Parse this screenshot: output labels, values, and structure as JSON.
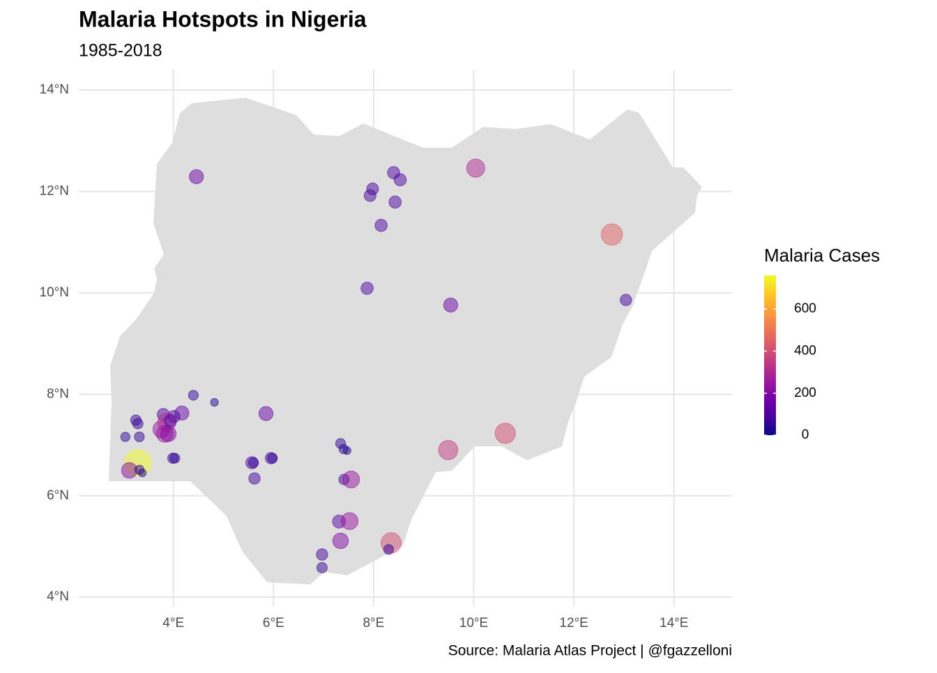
{
  "chart_data": {
    "type": "scatter",
    "title": "Malaria Hotspots in Nigeria",
    "subtitle": "1985-2018",
    "caption": "Source: Malaria Atlas Project | @fgazzelloni",
    "legend_title": "Malaria Cases",
    "x": [
      4.46,
      8.4,
      8.53,
      7.98,
      7.93,
      8.43,
      8.15,
      10.04,
      12.76,
      7.87,
      9.54,
      13.04,
      4.4,
      4.82,
      5.85,
      4.17,
      3.25,
      3.29,
      3.04,
      3.32,
      3.8,
      4.01,
      3.76,
      3.87,
      3.83,
      3.9,
      3.94,
      3.99,
      4.03,
      3.29,
      3.12,
      3.32,
      3.38,
      5.57,
      5.6,
      5.95,
      5.98,
      5.62,
      7.34,
      7.4,
      7.47,
      7.41,
      7.55,
      9.49,
      10.63,
      7.31,
      7.52,
      7.34,
      8.35,
      8.3,
      6.97,
      6.97
    ],
    "y": [
      12.29,
      12.37,
      12.23,
      12.05,
      11.92,
      11.79,
      11.33,
      12.46,
      11.15,
      10.09,
      9.76,
      9.86,
      7.98,
      7.84,
      7.62,
      7.63,
      7.49,
      7.42,
      7.16,
      7.16,
      7.6,
      7.56,
      7.31,
      7.45,
      7.22,
      7.22,
      7.48,
      6.74,
      6.74,
      6.65,
      6.5,
      6.51,
      6.45,
      6.65,
      6.65,
      6.74,
      6.74,
      6.34,
      7.03,
      6.92,
      6.89,
      6.32,
      6.32,
      6.9,
      7.23,
      5.49,
      5.5,
      5.11,
      5.07,
      4.94,
      4.84,
      4.58
    ],
    "values": [
      150,
      100,
      100,
      90,
      90,
      100,
      100,
      300,
      450,
      100,
      150,
      80,
      50,
      20,
      150,
      150,
      60,
      60,
      40,
      50,
      100,
      100,
      250,
      300,
      250,
      200,
      100,
      60,
      50,
      760,
      200,
      40,
      20,
      100,
      50,
      80,
      50,
      80,
      50,
      40,
      20,
      60,
      250,
      350,
      400,
      120,
      250,
      200,
      400,
      50,
      80,
      60
    ],
    "xlim": [
      2.11,
      15.16
    ],
    "ylim": [
      3.81,
      14.4
    ],
    "xticks": [
      {
        "value": 4,
        "label": "4°E"
      },
      {
        "value": 6,
        "label": "6°E"
      },
      {
        "value": 8,
        "label": "8°E"
      },
      {
        "value": 10,
        "label": "10°E"
      },
      {
        "value": 12,
        "label": "12°E"
      },
      {
        "value": 14,
        "label": "14°E"
      }
    ],
    "yticks": [
      {
        "value": 4,
        "label": "4°N"
      },
      {
        "value": 6,
        "label": "6°N"
      },
      {
        "value": 8,
        "label": "8°N"
      },
      {
        "value": 10,
        "label": "10°N"
      },
      {
        "value": 12,
        "label": "12°N"
      },
      {
        "value": 14,
        "label": "14°N"
      }
    ],
    "color_lim": [
      0,
      760
    ],
    "color_ticks": [
      0,
      200,
      400,
      600
    ],
    "colormap": [
      "#0d0887",
      "#46039f",
      "#7201a8",
      "#9c179e",
      "#bd3786",
      "#d8576b",
      "#ed7953",
      "#fb9f3a",
      "#fdca26",
      "#f0f921"
    ],
    "grid": true
  }
}
